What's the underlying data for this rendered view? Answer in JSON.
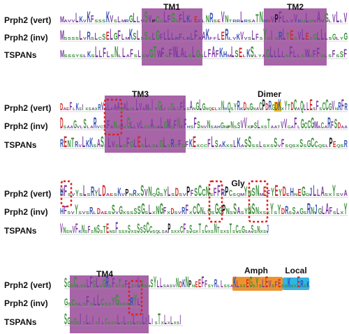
{
  "row_labels": [
    "Prph2 (vert)",
    "Prph2 (inv)",
    "TSPANs"
  ],
  "regions": {
    "tm1": "TM1",
    "tm2": "TM2",
    "tm3": "TM3",
    "dimer": "Dimer",
    "gly": "Gly",
    "tm4": "TM4",
    "amph": "Amph",
    "local": "Local"
  },
  "colors": {
    "tm_box": "#9b4f9b",
    "amph_box": "#f0922b",
    "local_box": "#2fb5e6",
    "dashed_highlight": "#e31b1b",
    "logo_purple": "#7b3aa0",
    "logo_green": "#3a8d3a",
    "logo_blue": "#2f4fb0",
    "logo_black": "#111111",
    "logo_yellow": "#e6c41c",
    "logo_red": "#d02a2a"
  },
  "panels": [
    {
      "id": "panel-1",
      "rows": [
        "MavvLKvKFsssKVsLmrGLLvSVpCcLFGsFLK/EflNRseVNtrrLrsaTNhdVPFLlvVkuLnvAvGlVLlV",
        "MssssLvRsLcSELGFLmKSLsSsLGFLLLrFlkLFaAKffLERlvKVvsLFsYsIsRLTEsVLEsGLLLsGlyG",
        "MsssyslKsLLFLsNlLaFsLsvGTWFsFWLALsLGsLFAFKHmLSElKSlyaGLLLLsFLlsWsFFslsFsSF"
      ]
    },
    {
      "id": "panel-2",
      "rows": [
        "DaeFlKsIxsaxRVaLfAAqALslLVaMsIvGLisGlcFLsAnGLGnqelxNhQsYRkDnGnaCPDRGDKxYTDCaQLLEsFsCCGVnRFR",
        "DsaaGvlSlaRvcaFaNoAxGLlVLsxAgaLGMqFNfFhsFSnvNsahGnpNsSVVxpSLxsTaatVVgaFlGCCGMaCaRFSDaa",
        "RENTRvLKKsASiLVsLsFGLEsLlslGLsRtFgFKExccFLSaKxsLKaSSssLsxsSvFsqsxSsGCCqslPEqsR"
      ]
    },
    {
      "id": "panel-3",
      "rows": [
        "HFsvYsLsRYLDaesKvPnRxSVNqGsYLsDsvPFSCCNsFFRPCsqmYNSNmEFYEYDeHnEGgJLLAsxYsvA",
        "HFsvYsvsRlDaesSvGxssSSGsLxNGFxDsvRFxCCNlGsGGPNsSAsYNSNxsxYsYDRsSaGsRNJGLAFsLxY",
        "VNsnVFkNsFsNSsTEnsFssxSxsSSSCCsqlsaPsxxCFsSgxTsCxsNTsxsTsCsGsaSsNxsJ"
      ]
    },
    {
      "id": "panel-4",
      "rows": [
        "SGsClxsLFGLsGRsFsTsFlsyLSsnSYLLsasvNDKNPnEEFFsyRlLssaKLsxEGsYsLEVsFEssKsxERsK",
        "GsCslsFsLLCsxYGxxsRYL",
        "SGsGsIsLlIsIlCsxxLxLxsLxsLILIsTxLxLxsI"
      ]
    }
  ]
}
